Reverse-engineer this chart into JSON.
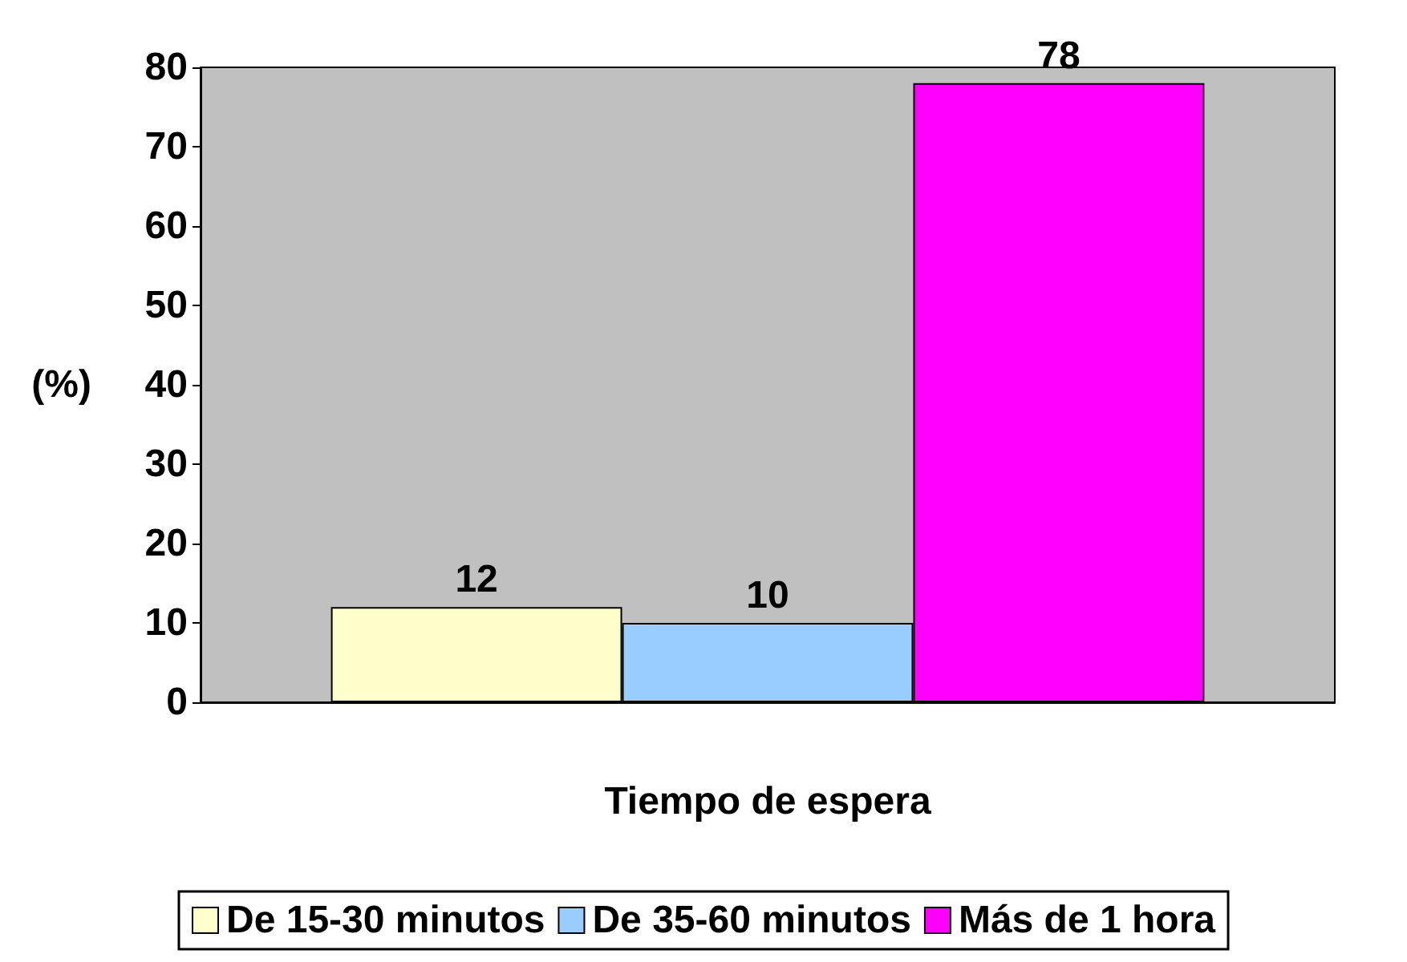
{
  "chart_data": {
    "type": "bar",
    "xlabel": "Tiempo de espera",
    "ylabel": "(%)",
    "categories": [
      null
    ],
    "series": [
      {
        "name": "De 15-30 minutos",
        "color": "#ffffcc",
        "values": [
          12
        ]
      },
      {
        "name": "De 35-60 minutos",
        "color": "#99ccff",
        "values": [
          10
        ]
      },
      {
        "name": "Más de 1 hora",
        "color": "#ff00ff",
        "values": [
          78
        ]
      }
    ],
    "ylim": [
      0,
      80
    ],
    "yticks": [
      0,
      10,
      20,
      30,
      40,
      50,
      60,
      70,
      80
    ],
    "data_labels": true,
    "legend": "bottom",
    "grid": false
  }
}
